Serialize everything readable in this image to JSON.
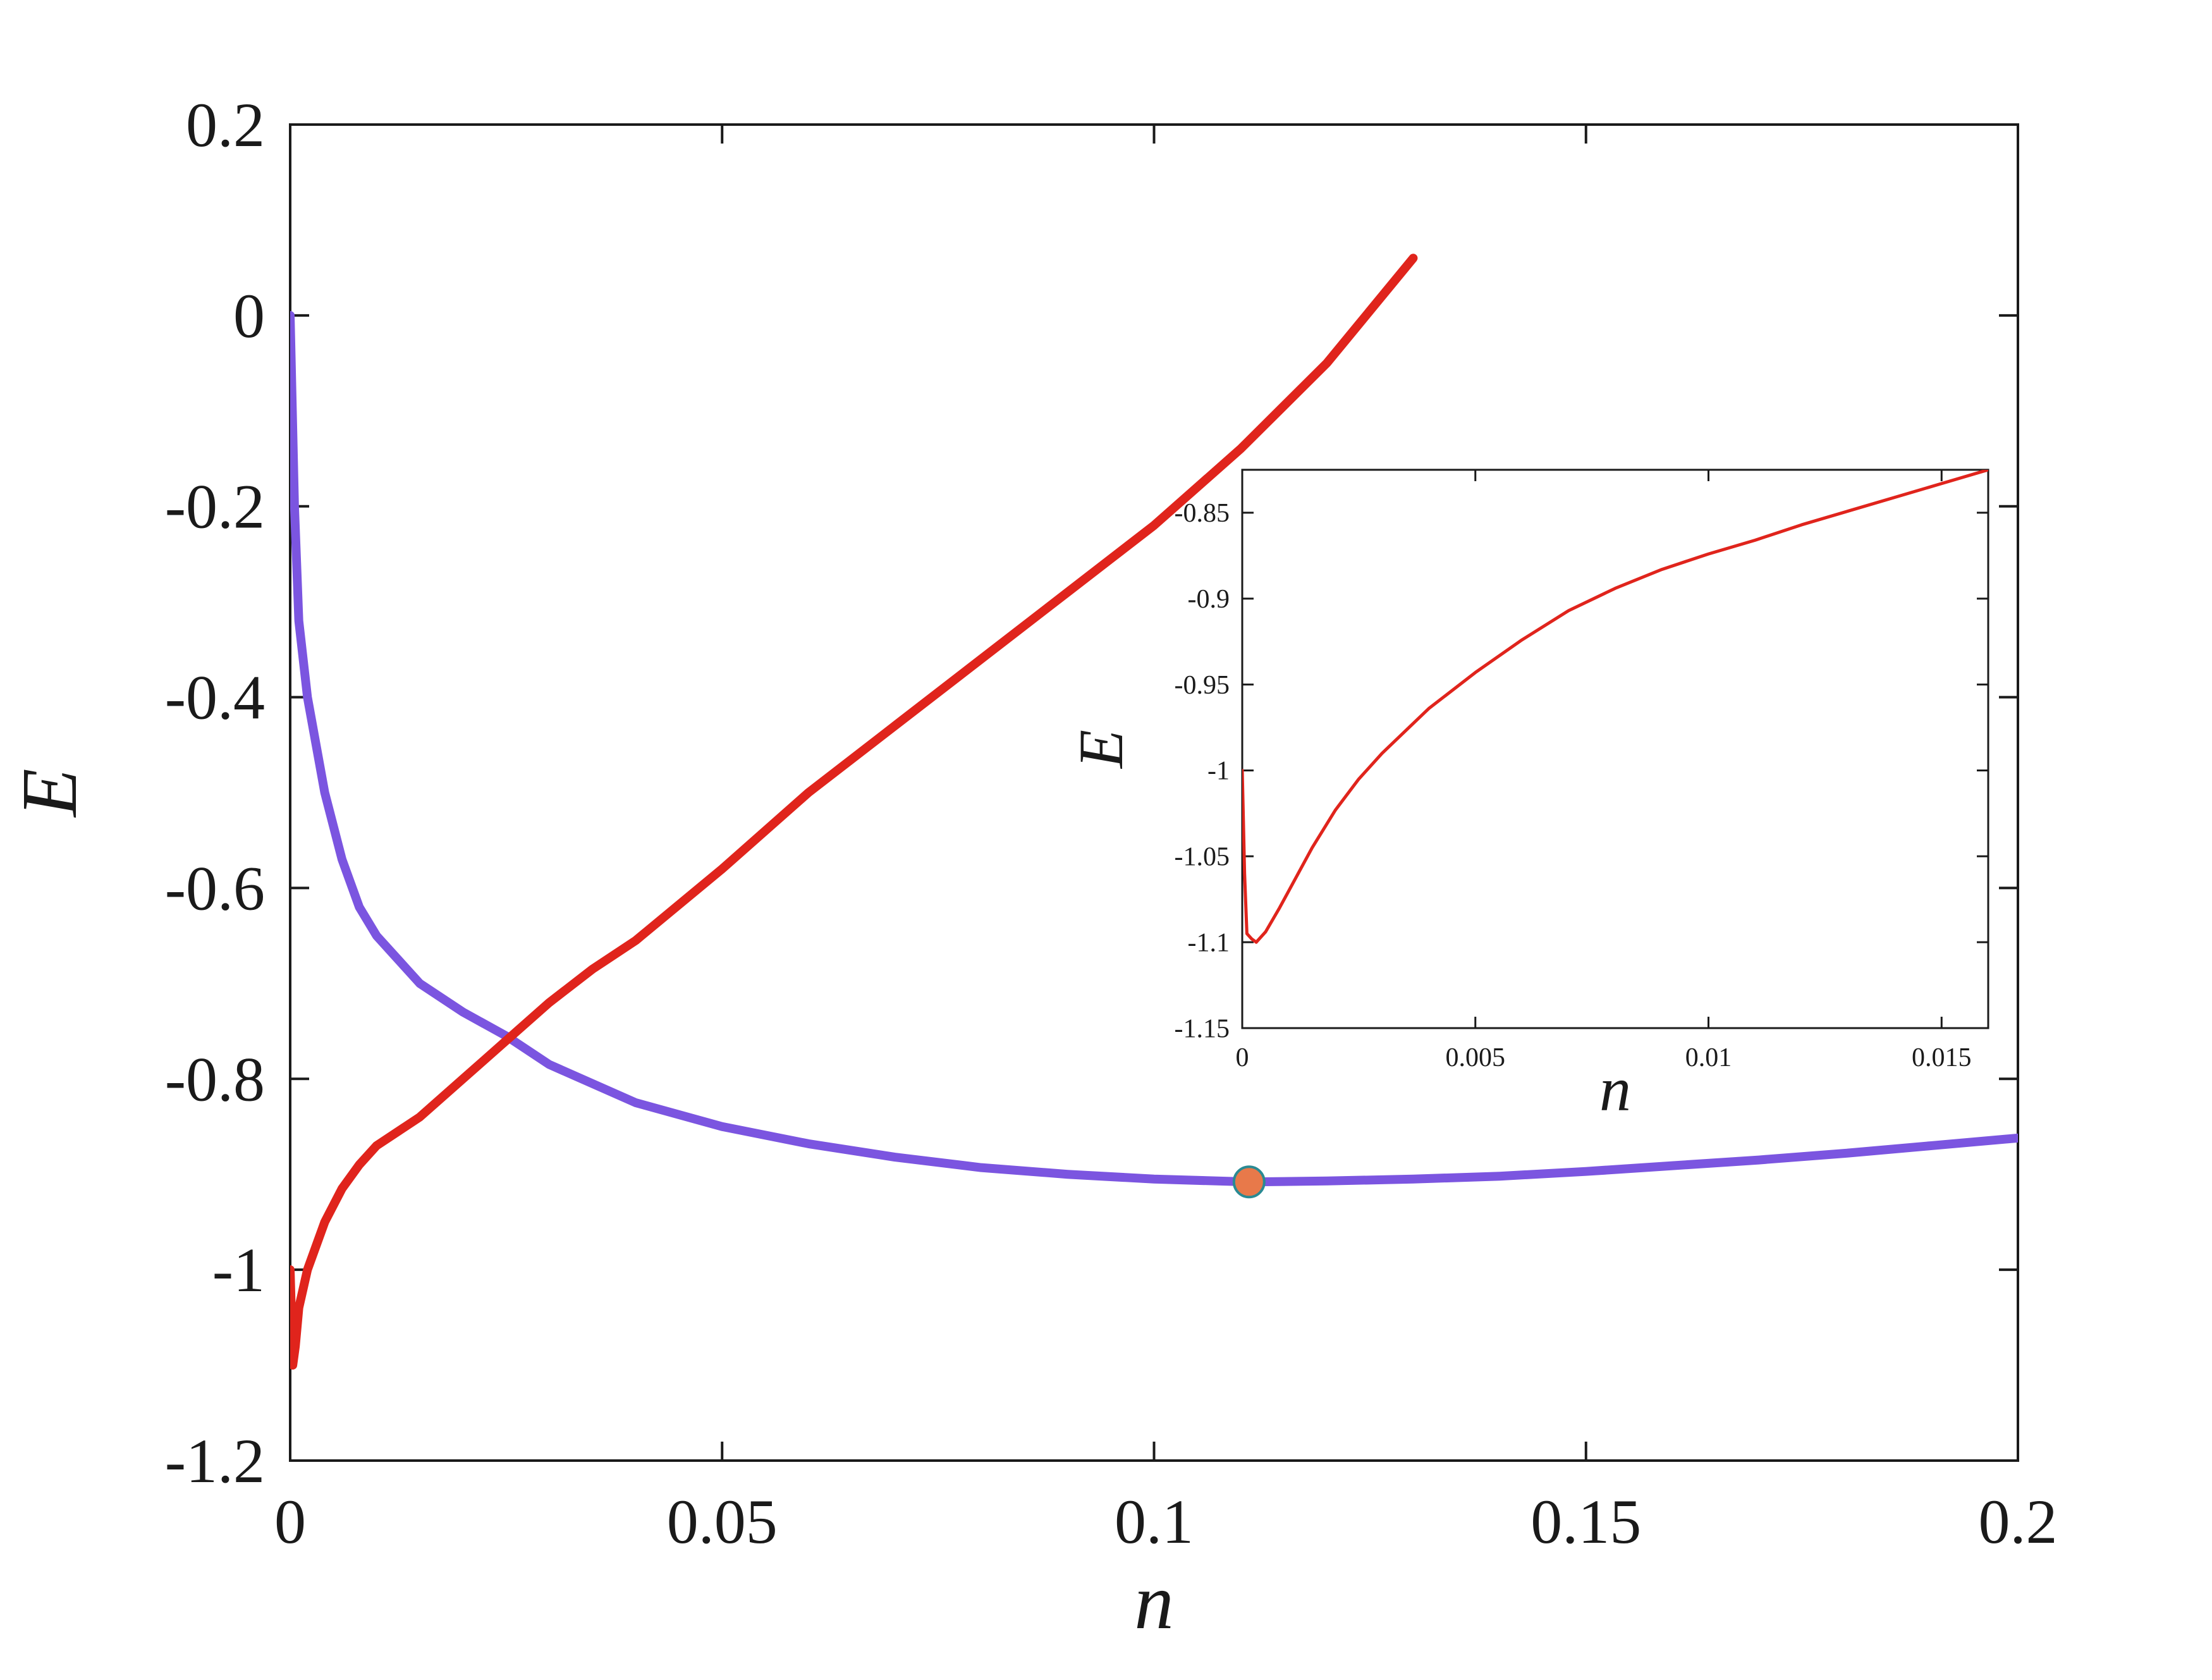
{
  "chart_data": [
    {
      "type": "line",
      "xlabel": "n",
      "ylabel": "E",
      "xlim": [
        0,
        0.2
      ],
      "ylim": [
        -1.2,
        0.2
      ],
      "xticks": [
        0,
        0.05,
        0.1,
        0.15,
        0.2
      ],
      "xtick_labels": [
        "0",
        "0.05",
        "0.1",
        "0.15",
        "0.2"
      ],
      "yticks": [
        -1.2,
        -1,
        -0.8,
        -0.6,
        -0.4,
        -0.2,
        0,
        0.2
      ],
      "ytick_labels": [
        "-1.2",
        "-1",
        "-0.8",
        "-0.6",
        "-0.4",
        "-0.2",
        "0",
        "0.2"
      ],
      "grid": false,
      "series": [
        {
          "color": "#7b55e0",
          "x": [
            0,
            0.0005,
            0.001,
            0.002,
            0.004,
            0.006,
            0.008,
            0.01,
            0.015,
            0.02,
            0.025,
            0.03,
            0.04,
            0.05,
            0.06,
            0.07,
            0.08,
            0.09,
            0.1,
            0.111,
            0.12,
            0.13,
            0.14,
            0.15,
            0.16,
            0.17,
            0.18,
            0.19,
            0.2
          ],
          "y": [
            0,
            -0.2,
            -0.32,
            -0.4,
            -0.5,
            -0.57,
            -0.62,
            -0.65,
            -0.7,
            -0.73,
            -0.755,
            -0.785,
            -0.825,
            -0.85,
            -0.868,
            -0.882,
            -0.893,
            -0.9,
            -0.905,
            -0.908,
            -0.907,
            -0.905,
            -0.902,
            -0.897,
            -0.891,
            -0.885,
            -0.878,
            -0.87,
            -0.862
          ]
        },
        {
          "color": "#e0241c",
          "x": [
            0,
            0.0003,
            0.0006,
            0.001,
            0.002,
            0.004,
            0.006,
            0.008,
            0.01,
            0.015,
            0.02,
            0.025,
            0.03,
            0.035,
            0.04,
            0.05,
            0.06,
            0.07,
            0.08,
            0.09,
            0.1,
            0.11,
            0.12,
            0.13
          ],
          "y": [
            -1.0,
            -1.1,
            -1.08,
            -1.04,
            -1.0,
            -0.95,
            -0.915,
            -0.89,
            -0.87,
            -0.84,
            -0.8,
            -0.76,
            -0.72,
            -0.685,
            -0.655,
            -0.58,
            -0.5,
            -0.43,
            -0.36,
            -0.29,
            -0.22,
            -0.14,
            -0.05,
            0.06
          ]
        }
      ],
      "markers": [
        {
          "x": 0.111,
          "y": -0.908,
          "fill": "#e8794a",
          "stroke": "#2a8a93"
        }
      ]
    },
    {
      "type": "line",
      "xlabel": "n",
      "ylabel": "E",
      "xlim": [
        0,
        0.016
      ],
      "ylim": [
        -1.15,
        -0.825
      ],
      "xticks": [
        0,
        0.005,
        0.01,
        0.015
      ],
      "xtick_labels": [
        "0",
        "0.005",
        "0.01",
        "0.015"
      ],
      "yticks": [
        -1.15,
        -1.1,
        -1.05,
        -1,
        -0.95,
        -0.9,
        -0.85
      ],
      "ytick_labels": [
        "-1.15",
        "-1.1",
        "-1.05",
        "-1",
        "-0.95",
        "-0.9",
        "-0.85"
      ],
      "grid": false,
      "series": [
        {
          "color": "#e0241c",
          "x": [
            0,
            5e-05,
            0.0001,
            0.0002,
            0.0003,
            0.0005,
            0.0008,
            0.001,
            0.0015,
            0.002,
            0.0025,
            0.003,
            0.004,
            0.005,
            0.006,
            0.007,
            0.008,
            0.009,
            0.01,
            0.011,
            0.012,
            0.013,
            0.014,
            0.015,
            0.016
          ],
          "y": [
            -1.0,
            -1.06,
            -1.095,
            -1.098,
            -1.1,
            -1.094,
            -1.08,
            -1.07,
            -1.045,
            -1.023,
            -1.005,
            -0.99,
            -0.964,
            -0.943,
            -0.924,
            -0.907,
            -0.894,
            -0.883,
            -0.874,
            -0.866,
            -0.857,
            -0.849,
            -0.841,
            -0.833,
            -0.825
          ]
        }
      ]
    }
  ]
}
